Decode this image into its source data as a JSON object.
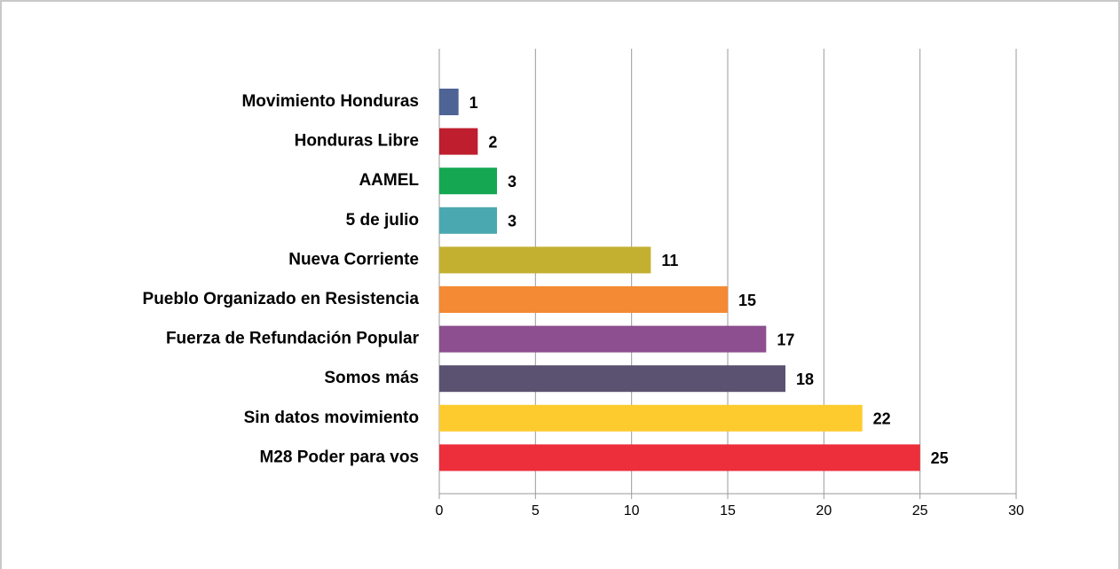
{
  "chart_data": {
    "type": "bar",
    "orientation": "horizontal",
    "categories": [
      "Movimiento Honduras",
      "Honduras Libre",
      "AAMEL",
      "5 de julio",
      "Nueva Corriente",
      "Pueblo Organizado en Resistencia",
      "Fuerza de Refundación Popular",
      "Somos más",
      "Sin datos movimiento",
      "M28 Poder para vos"
    ],
    "values": [
      1,
      2,
      3,
      3,
      11,
      15,
      17,
      18,
      22,
      25
    ],
    "colors": [
      "#4e6494",
      "#be1e2d",
      "#16a753",
      "#4aa8b0",
      "#c3b030",
      "#f48a33",
      "#8d4f8f",
      "#5a5270",
      "#fecb2e",
      "#ec2f3b"
    ],
    "xlim": [
      0,
      30
    ],
    "xticks": [
      0,
      5,
      10,
      15,
      20,
      25,
      30
    ],
    "grid": true
  }
}
